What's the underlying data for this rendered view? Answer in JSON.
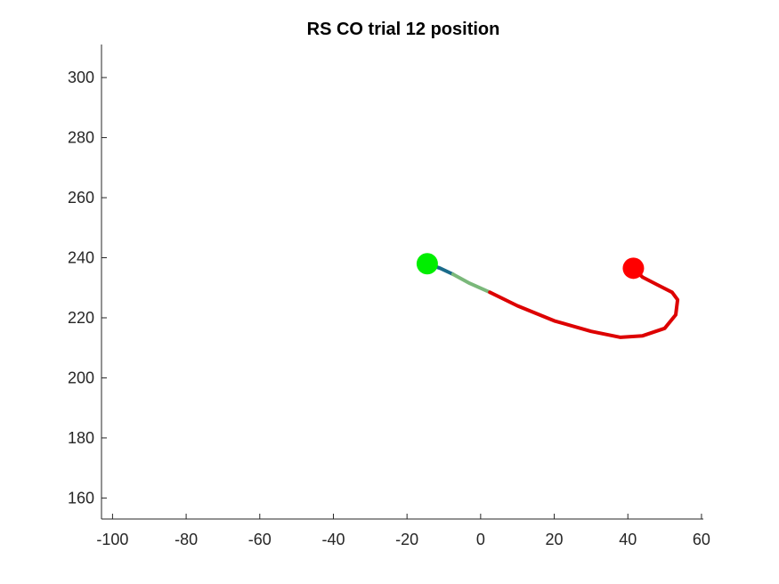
{
  "chart_data": {
    "type": "line",
    "title": "RS  CO trial 12 position",
    "xlabel": "",
    "ylabel": "",
    "xlim": [
      -103,
      60.5
    ],
    "ylim": [
      153,
      311
    ],
    "x_ticks": [
      -100,
      -80,
      -60,
      -40,
      -20,
      0,
      20,
      40,
      60
    ],
    "y_ticks": [
      160,
      180,
      200,
      220,
      240,
      260,
      280,
      300
    ],
    "x_tick_labels": [
      "-100",
      "-80",
      "-60",
      "-40",
      "-20",
      "0",
      "20",
      "40",
      "60"
    ],
    "y_tick_labels": [
      "160",
      "180",
      "200",
      "220",
      "240",
      "260",
      "280",
      "300"
    ],
    "grid": false,
    "series": [
      {
        "color": "#1a6b8a",
        "x": [
          -14.5,
          -11,
          -7.5
        ],
        "y": [
          238,
          236.5,
          234.5
        ]
      },
      {
        "color": "#7ab87a",
        "x": [
          -7.5,
          -3,
          2.5
        ],
        "y": [
          234.5,
          231.5,
          228.5
        ]
      },
      {
        "color": "#dd0000",
        "x": [
          2.5,
          10,
          20,
          30,
          38,
          44,
          50,
          53,
          53.5,
          52,
          48,
          44,
          41.5
        ],
        "y": [
          228.5,
          224,
          219,
          215.5,
          213.5,
          214,
          216.5,
          221,
          226,
          228.5,
          231,
          233.5,
          236.5
        ]
      }
    ],
    "markers": [
      {
        "label": "start",
        "x": -14.5,
        "y": 238,
        "color": "#00ee00"
      },
      {
        "label": "end",
        "x": 41.5,
        "y": 236.5,
        "color": "#ff0000"
      }
    ]
  }
}
